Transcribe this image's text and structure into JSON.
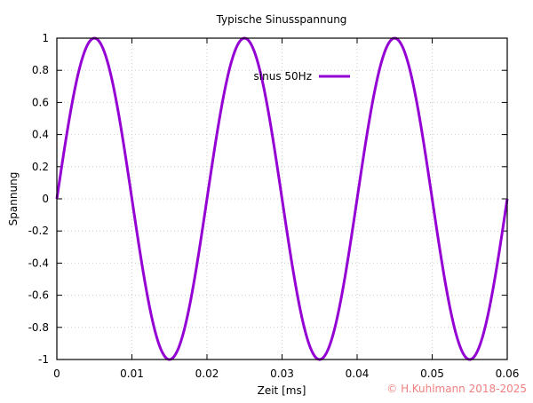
{
  "chart_data": {
    "type": "line",
    "title": "Typische Sinusspannung",
    "xlabel": "Zeit [ms]",
    "ylabel": "Spannung",
    "xlim": [
      0,
      0.06
    ],
    "ylim": [
      -1,
      1
    ],
    "xticks": [
      "0",
      "0.01",
      "0.02",
      "0.03",
      "0.04",
      "0.05",
      "0.06"
    ],
    "yticks": [
      "1",
      "0.8",
      "0.6",
      "0.4",
      "0.2",
      "0",
      "-0.2",
      "-0.4",
      "-0.6",
      "-0.8",
      "-1"
    ],
    "grid": true,
    "legend_position": "top-center",
    "series": [
      {
        "name": "sinus 50Hz",
        "function": "sin(2*pi*50*x)",
        "frequency_hz": 50,
        "amplitude": 1,
        "color": "#9400d3"
      }
    ]
  },
  "copyright": "© H.Kuhlmann 2018-2025",
  "copyright_color": "#f08080"
}
